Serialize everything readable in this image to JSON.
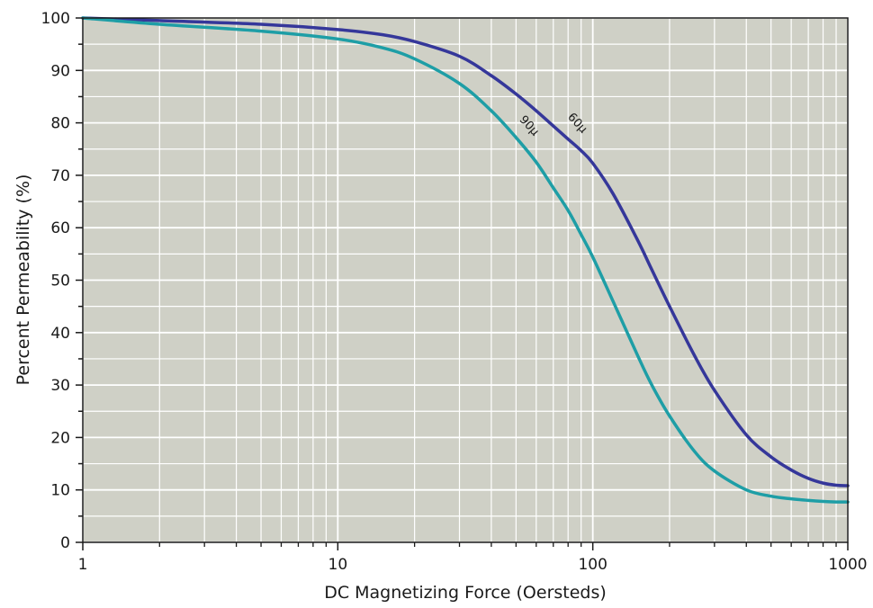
{
  "chart_data": {
    "type": "line",
    "xlabel": "DC Magnetizing Force (Oersteds)",
    "ylabel": "Percent Permeability (%)",
    "x_scale": "log",
    "xlim": [
      1,
      1000
    ],
    "ylim": [
      0,
      100
    ],
    "x_ticks": [
      1,
      10,
      100,
      1000
    ],
    "x_tick_labels": [
      "1",
      "10",
      "100",
      "1000"
    ],
    "y_ticks": [
      0,
      10,
      20,
      30,
      40,
      50,
      60,
      70,
      80,
      90,
      100
    ],
    "y_tick_labels": [
      "0",
      "10",
      "20",
      "30",
      "40",
      "50",
      "60",
      "70",
      "80",
      "90",
      "100"
    ],
    "grid": true,
    "plot_background": "#cfd0c6",
    "series": [
      {
        "name": "60µ",
        "color": "#35379a",
        "points": [
          [
            1,
            100
          ],
          [
            2,
            99.5
          ],
          [
            5,
            98.8
          ],
          [
            10,
            97.8
          ],
          [
            15,
            96.8
          ],
          [
            20,
            95.5
          ],
          [
            30,
            92.7
          ],
          [
            40,
            89
          ],
          [
            50,
            85.5
          ],
          [
            60,
            82.3
          ],
          [
            70,
            79.4
          ],
          [
            80,
            76.9
          ],
          [
            90,
            74.7
          ],
          [
            100,
            72.3
          ],
          [
            120,
            66.5
          ],
          [
            150,
            57.6
          ],
          [
            170,
            52.1
          ],
          [
            200,
            45
          ],
          [
            250,
            35.7
          ],
          [
            300,
            29
          ],
          [
            400,
            20.5
          ],
          [
            500,
            16.3
          ],
          [
            600,
            13.8
          ],
          [
            700,
            12.2
          ],
          [
            800,
            11.3
          ],
          [
            900,
            10.9
          ],
          [
            1000,
            10.8
          ]
        ]
      },
      {
        "name": "90µ",
        "color": "#1e9ea6",
        "points": [
          [
            1,
            100
          ],
          [
            2,
            98.8
          ],
          [
            5,
            97.5
          ],
          [
            10,
            96
          ],
          [
            15,
            94.3
          ],
          [
            20,
            92.2
          ],
          [
            30,
            87.5
          ],
          [
            40,
            82.3
          ],
          [
            50,
            77.2
          ],
          [
            60,
            72.5
          ],
          [
            70,
            67.6
          ],
          [
            80,
            63.3
          ],
          [
            90,
            58.7
          ],
          [
            100,
            54.4
          ],
          [
            120,
            46
          ],
          [
            150,
            35.6
          ],
          [
            170,
            30.1
          ],
          [
            200,
            24.1
          ],
          [
            250,
            17.4
          ],
          [
            300,
            13.6
          ],
          [
            400,
            10
          ],
          [
            500,
            8.8
          ],
          [
            600,
            8.3
          ],
          [
            700,
            8
          ],
          [
            800,
            7.8
          ],
          [
            900,
            7.7
          ],
          [
            1000,
            7.7
          ]
        ]
      }
    ],
    "annotations": [
      {
        "text": "90µ",
        "x": 55,
        "y": 79,
        "rotation": 47
      },
      {
        "text": "60µ",
        "x": 85,
        "y": 79.5,
        "rotation": 47
      }
    ]
  }
}
